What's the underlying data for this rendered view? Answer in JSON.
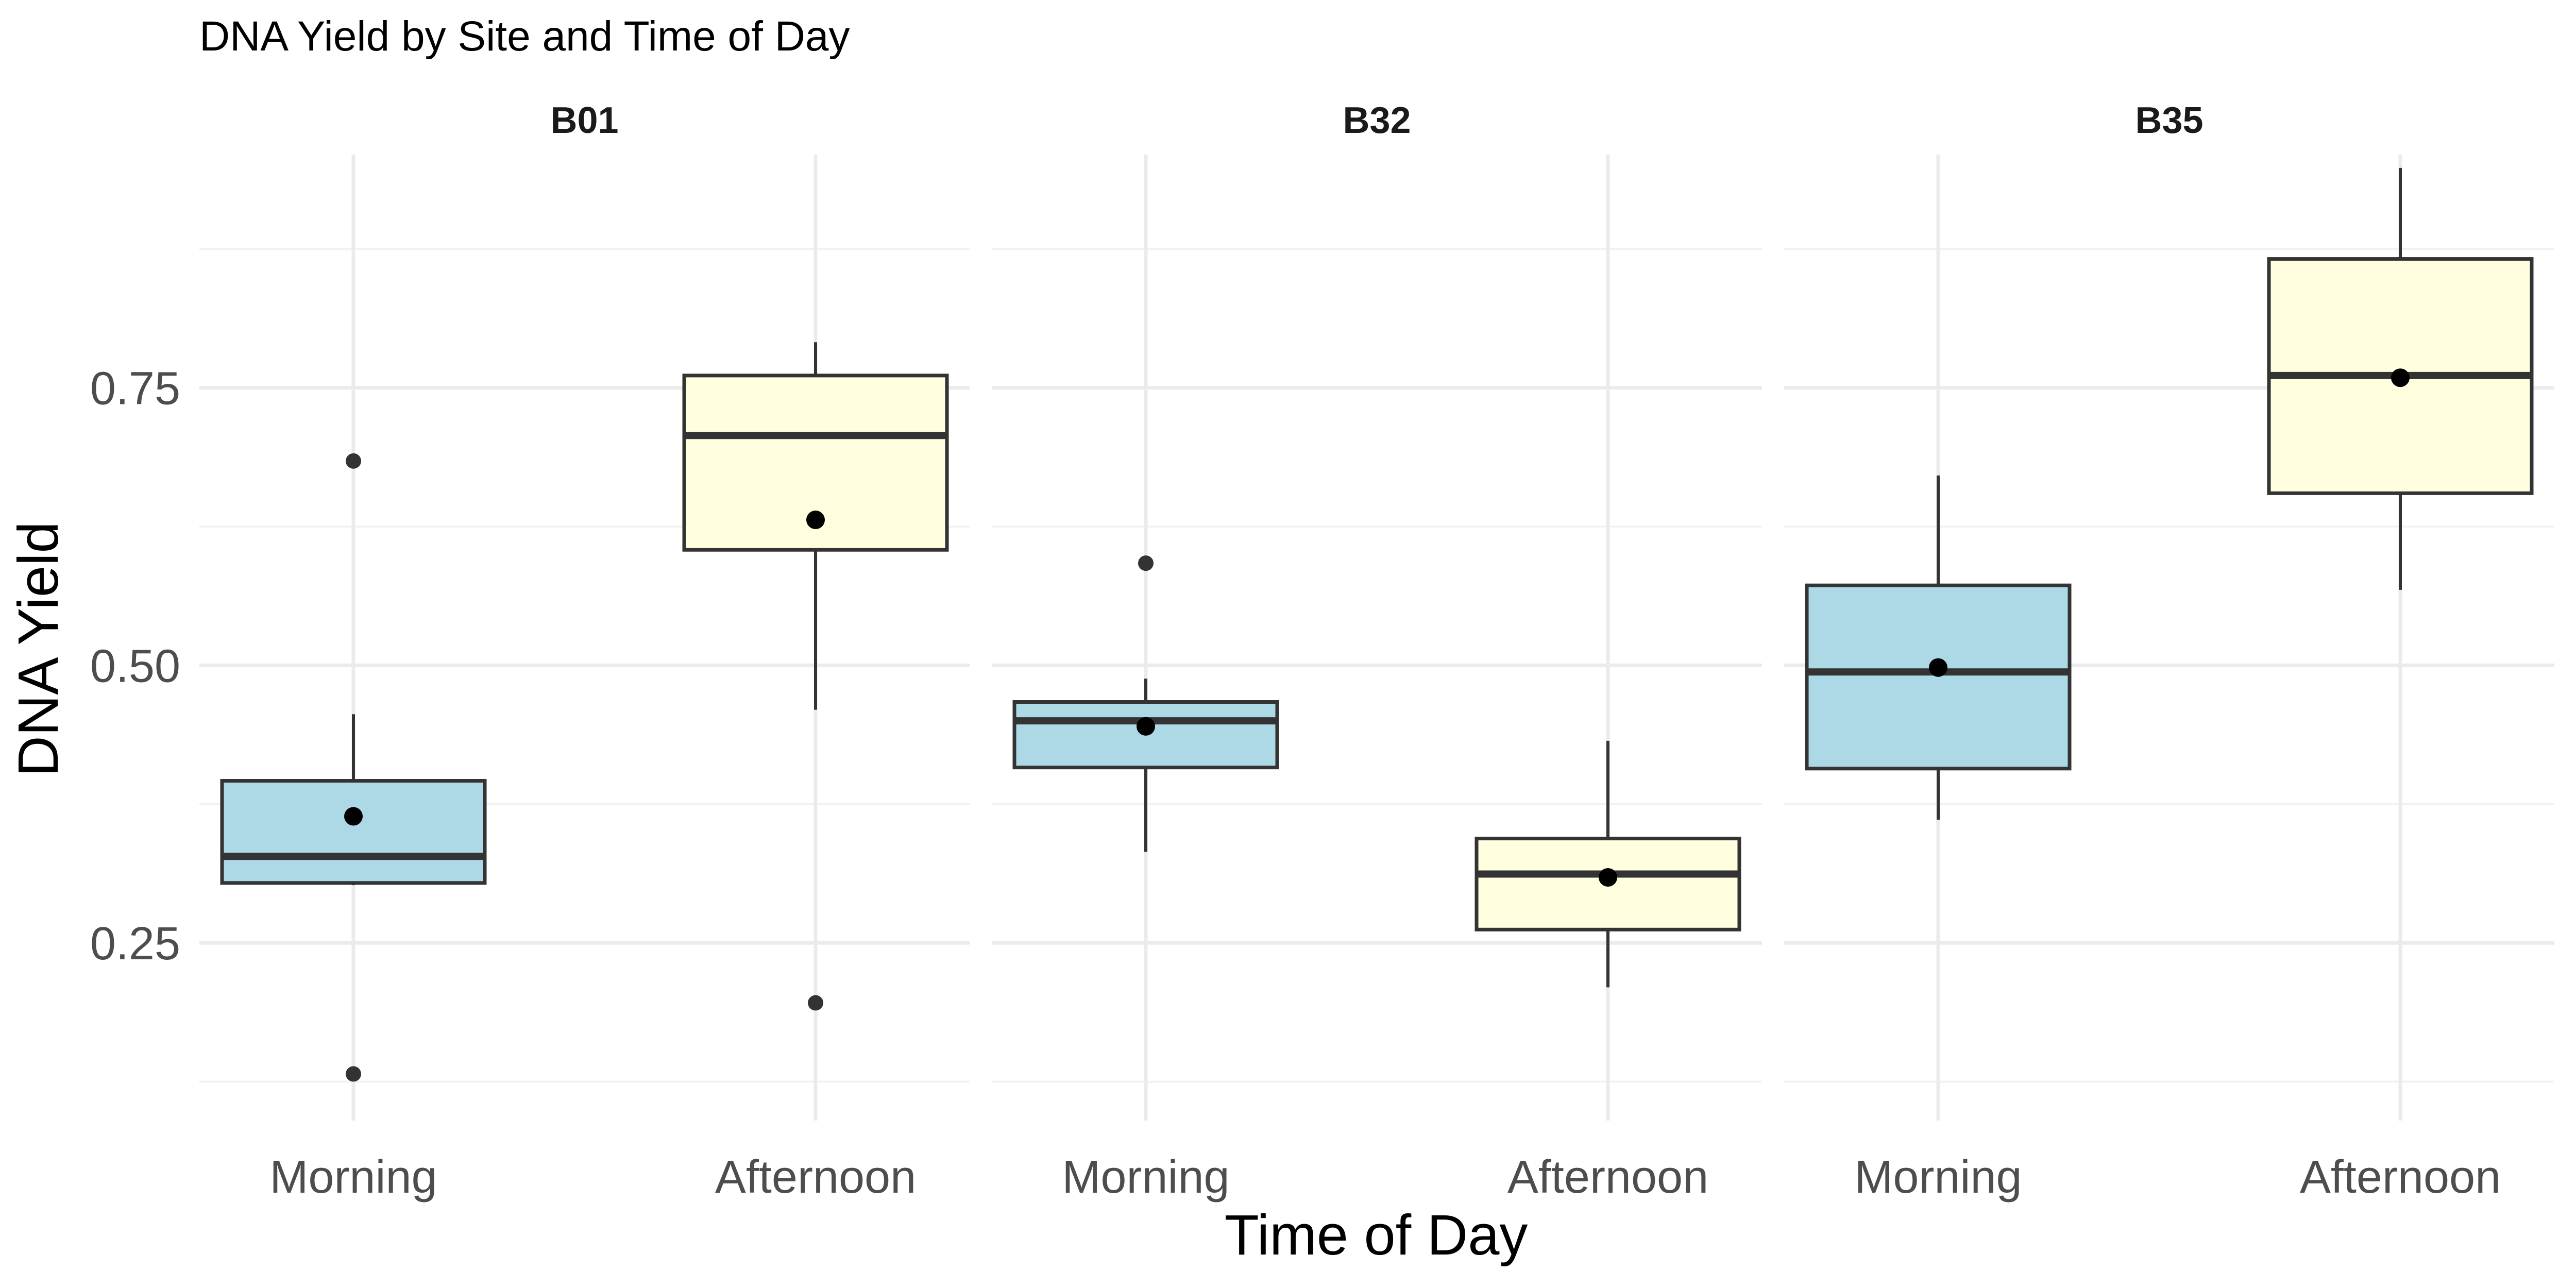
{
  "chart_data": {
    "type": "boxplot",
    "title": "DNA Yield by Site and Time of Day",
    "xlabel": "Time of Day",
    "ylabel": "DNA Yield",
    "ylim": [
      0.09,
      0.96
    ],
    "y_ticks": [
      0.25,
      0.5,
      0.75
    ],
    "y_tick_labels": [
      "0.25",
      "0.50",
      "0.75"
    ],
    "y_minor_ticks": [
      0.125,
      0.375,
      0.625,
      0.875
    ],
    "categories": [
      "Morning",
      "Afternoon"
    ],
    "fill_colors": {
      "Morning": "#ADD8E6",
      "Afternoon": "#FFFFE0"
    },
    "grid": true,
    "legend": "none",
    "facets": [
      {
        "label": "B01",
        "boxes": [
          {
            "category": "Morning",
            "whisker_low": 0.302,
            "q1": 0.304,
            "median": 0.328,
            "q3": 0.396,
            "whisker_high": 0.456,
            "mean": 0.364,
            "outliers": [
              0.684,
              0.132
            ]
          },
          {
            "category": "Afternoon",
            "whisker_low": 0.46,
            "q1": 0.604,
            "median": 0.707,
            "q3": 0.761,
            "whisker_high": 0.791,
            "mean": 0.631,
            "outliers": [
              0.196
            ]
          }
        ]
      },
      {
        "label": "B32",
        "boxes": [
          {
            "category": "Morning",
            "whisker_low": 0.332,
            "q1": 0.408,
            "median": 0.45,
            "q3": 0.467,
            "whisker_high": 0.488,
            "mean": 0.445,
            "outliers": [
              0.592
            ]
          },
          {
            "category": "Afternoon",
            "whisker_low": 0.21,
            "q1": 0.262,
            "median": 0.312,
            "q3": 0.344,
            "whisker_high": 0.432,
            "mean": 0.309,
            "outliers": []
          }
        ]
      },
      {
        "label": "B35",
        "boxes": [
          {
            "category": "Morning",
            "whisker_low": 0.361,
            "q1": 0.407,
            "median": 0.494,
            "q3": 0.572,
            "whisker_high": 0.671,
            "mean": 0.498,
            "outliers": []
          },
          {
            "category": "Afternoon",
            "whisker_low": 0.568,
            "q1": 0.655,
            "median": 0.761,
            "q3": 0.866,
            "whisker_high": 0.948,
            "mean": 0.759,
            "outliers": []
          }
        ]
      }
    ]
  }
}
